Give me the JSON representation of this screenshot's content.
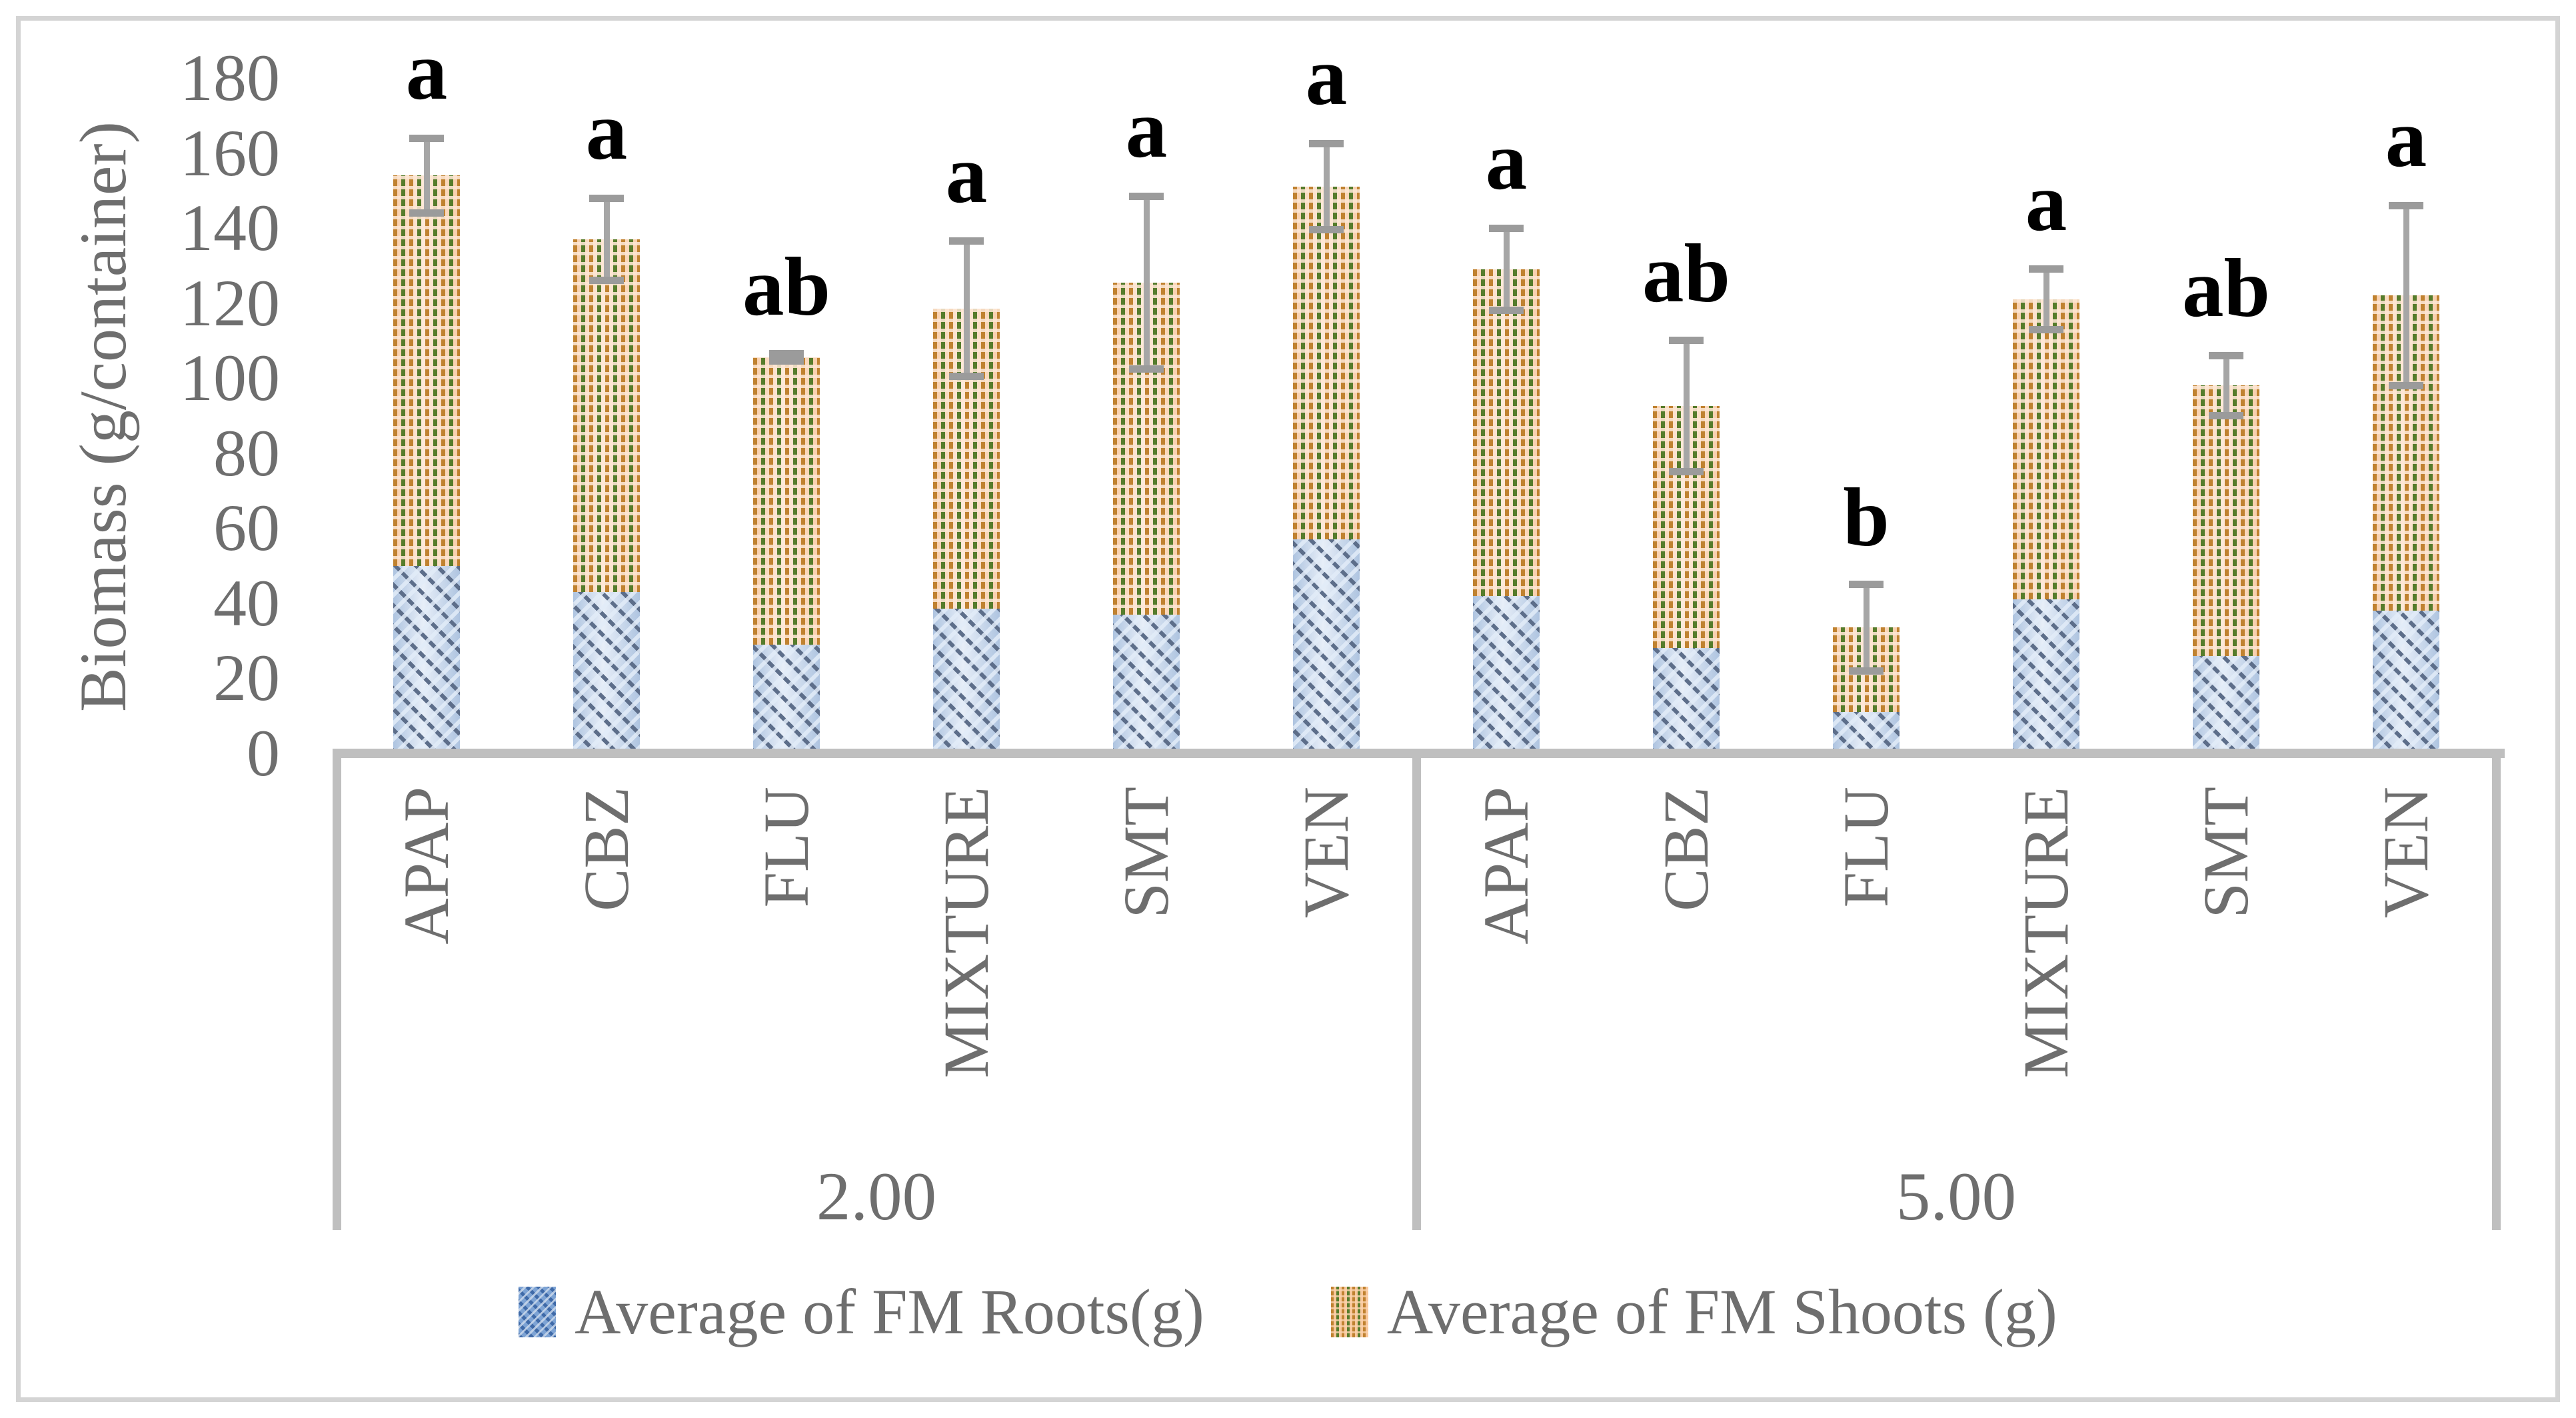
{
  "figure": {
    "ylabel": "Biomass (g/container)"
  },
  "chart_data": {
    "type": "bar",
    "stacked": true,
    "title": "",
    "xlabel": "",
    "ylabel": "Biomass (g/container)",
    "ylim": [
      0,
      180
    ],
    "yticks": [
      0,
      20,
      40,
      60,
      80,
      100,
      120,
      140,
      160,
      180
    ],
    "grid": false,
    "legend_position": "bottom",
    "legend": [
      {
        "label": "Average of FM Roots(g)",
        "series": "roots",
        "pattern": "blue-diagonal-hatch",
        "color": "#7da3d4"
      },
      {
        "label": "Average of FM Shoots (g)",
        "series": "shoots",
        "pattern": "orange-green-dots",
        "color": "#f8c79b"
      }
    ],
    "series": [
      {
        "name": "Average of FM Roots(g)"
      },
      {
        "name": "Average of FM Shoots (g)"
      }
    ],
    "groups": [
      {
        "label": "2.00",
        "categories": [
          "APAP",
          "CBZ",
          "FLU",
          "MIXTURE",
          "SMT",
          "VEN"
        ],
        "roots": [
          50,
          43,
          29,
          38.5,
          37,
          57
        ],
        "shoots": [
          104,
          94,
          76.5,
          80,
          88.5,
          94
        ],
        "totals": [
          154,
          137,
          105.5,
          118.5,
          125.5,
          151
        ],
        "error_low": [
          144,
          126,
          104.5,
          100.5,
          102.5,
          139.5
        ],
        "error_high": [
          164,
          148,
          106.5,
          136.5,
          148.5,
          162.5
        ],
        "letters": [
          "a",
          "a",
          "ab",
          "a",
          "a",
          "a"
        ]
      },
      {
        "label": "5.00",
        "categories": [
          "APAP",
          "CBZ",
          "FLU",
          "MIXTURE",
          "SMT",
          "VEN"
        ],
        "roots": [
          42,
          28,
          11,
          41,
          26,
          38
        ],
        "shoots": [
          87,
          64.5,
          22.5,
          80,
          72,
          84
        ],
        "totals": [
          129,
          92.5,
          33.5,
          121,
          98,
          122
        ],
        "error_low": [
          118,
          75,
          22,
          113,
          90,
          98
        ],
        "error_high": [
          140,
          110,
          45,
          129,
          106,
          146
        ],
        "letters": [
          "a",
          "ab",
          "b",
          "a",
          "ab",
          "a"
        ]
      }
    ],
    "colors": {
      "roots_fill": "#c9d8ec",
      "roots_hatch": "#5d6e8a",
      "shoots_fill": "#fbd7ba",
      "shoots_dot_orange": "#c08230",
      "shoots_dot_green": "#567c2b",
      "axis_line": "#bfbfbf",
      "error_bar": "#a6a6a6",
      "text_gray": "#6e6e6e",
      "letter_black": "#000000"
    }
  }
}
